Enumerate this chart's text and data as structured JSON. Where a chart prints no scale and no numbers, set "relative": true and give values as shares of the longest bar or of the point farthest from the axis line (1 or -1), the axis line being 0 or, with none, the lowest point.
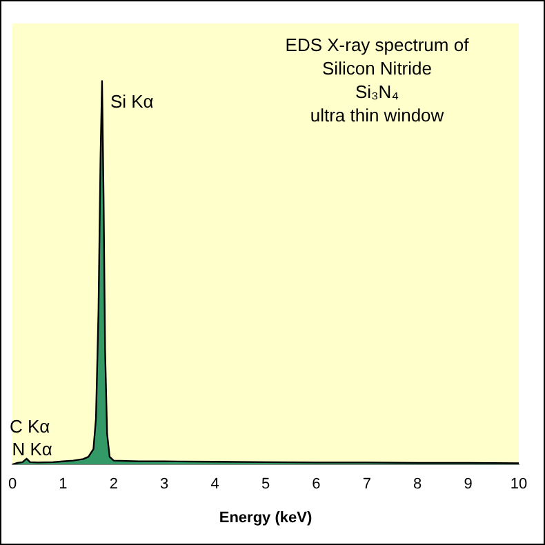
{
  "chart_data": {
    "type": "area",
    "title": "EDS X-ray spectrum of Silicon Nitride",
    "subtitle": "Si₃N₄",
    "xlabel": "Energy (keV)",
    "relative": true,
    "tick_labels": "x",
    "grid": false,
    "legend": false,
    "marker": "none",
    "x": [
      0,
      0.1,
      0.2,
      0.28,
      0.35,
      0.5,
      0.8,
      1.0,
      1.2,
      1.4,
      1.5,
      1.6,
      1.65,
      1.7,
      1.74,
      1.77,
      1.8,
      1.83,
      1.87,
      1.92,
      2.0,
      2.5,
      3,
      4,
      5,
      6,
      7,
      8,
      9,
      10
    ],
    "series": [
      {
        "color": "#339966",
        "values": [
          0,
          0.004,
          0.006,
          0.015,
          0.006,
          0.005,
          0.006,
          0.008,
          0.01,
          0.014,
          0.02,
          0.04,
          0.12,
          0.4,
          0.8,
          1,
          0.7,
          0.3,
          0.08,
          0.02,
          0.01,
          0.008,
          0.008,
          0.007,
          0.006,
          0.005,
          0.005,
          0.004,
          0.004,
          0.003
        ]
      }
    ],
    "xlim": [
      0,
      10
    ],
    "xticks": [
      0,
      1,
      2,
      3,
      4,
      5,
      6,
      7,
      8,
      9,
      10
    ],
    "annotations": [
      "ultra thin window",
      {
        "text": "Si Kα",
        "x": 1.77,
        "y": 1
      },
      {
        "text": "C Kα",
        "x": 0.28,
        "y": 0.015
      },
      {
        "text": "N Kα",
        "x": 0.39,
        "y": 0.006
      }
    ]
  }
}
